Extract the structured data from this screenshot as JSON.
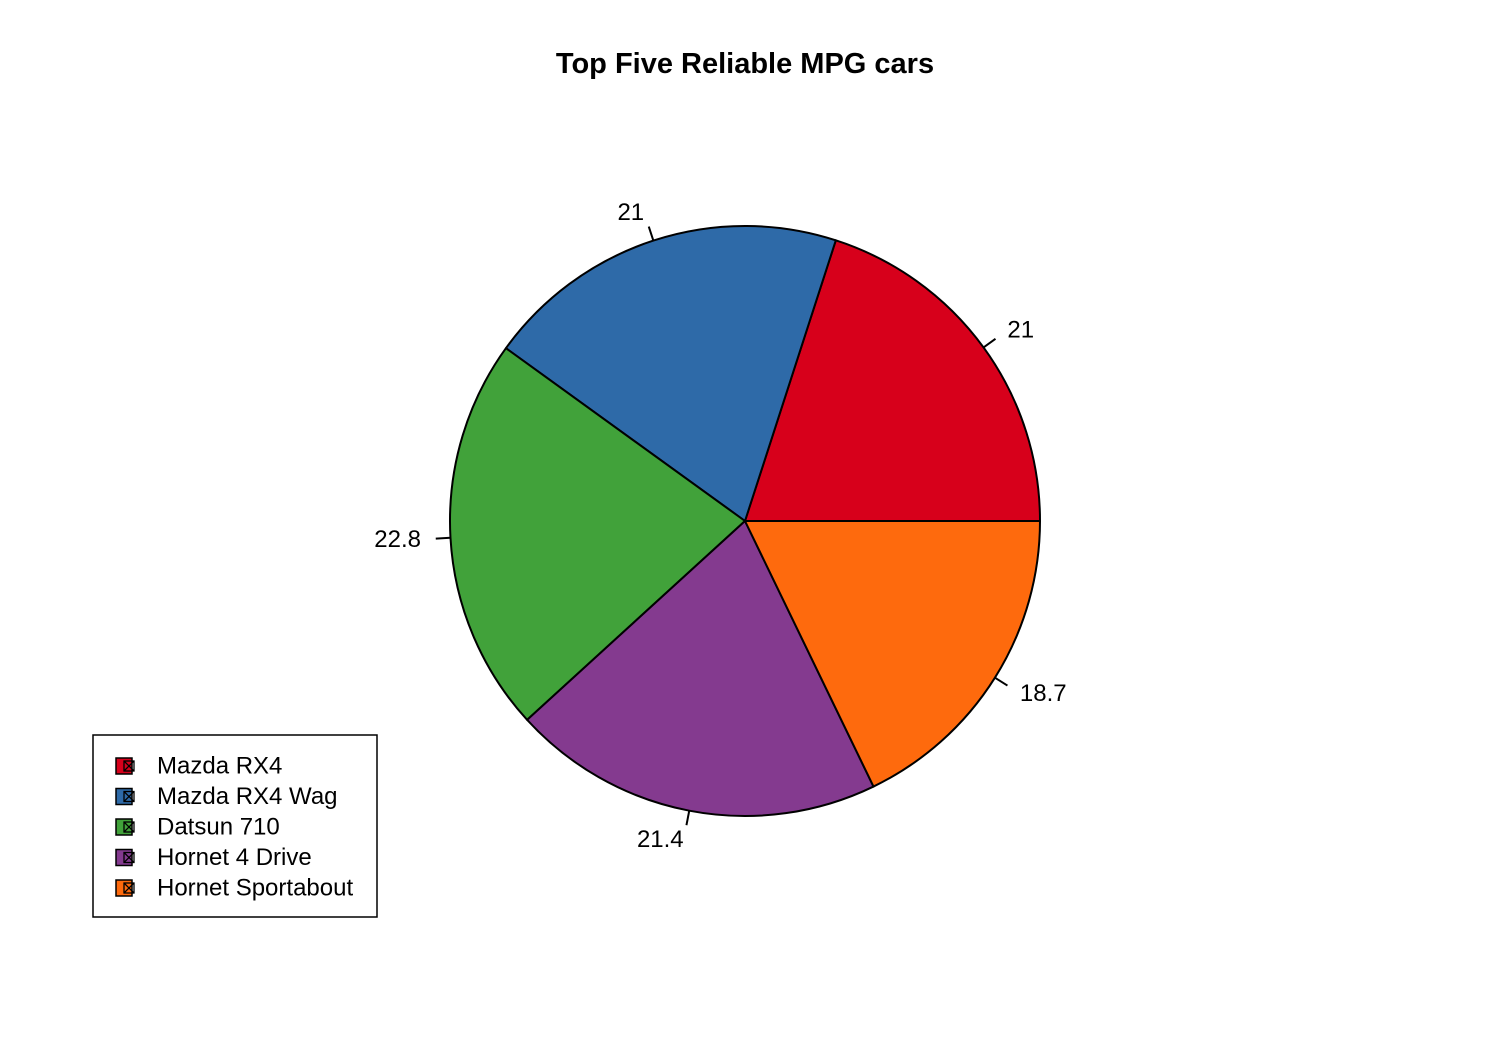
{
  "chart_data": {
    "type": "pie",
    "title": "Top Five Reliable MPG cars",
    "categories": [
      "Mazda RX4",
      "Mazda RX4 Wag",
      "Datsun 710",
      "Hornet 4 Drive",
      "Hornet Sportabout"
    ],
    "values": [
      21,
      21,
      22.8,
      21.4,
      18.7
    ],
    "labels": [
      "21",
      "21",
      "22.8",
      "21.4",
      "18.7"
    ],
    "colors": [
      "#d7001b",
      "#2e6aa8",
      "#41a23a",
      "#843a8f",
      "#fe6a0d"
    ],
    "start_angle_deg": 0,
    "direction": "counterclockwise",
    "legend": {
      "position": "bottom-left",
      "entries": [
        "Mazda RX4",
        "Mazda RX4 Wag",
        "Datsun 710",
        "Hornet 4 Drive",
        "Hornet Sportabout"
      ]
    }
  }
}
